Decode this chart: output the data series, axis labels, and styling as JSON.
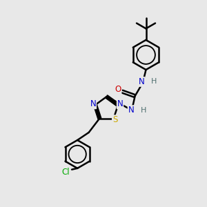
{
  "bg_color": "#e8e8e8",
  "bond_color": "#000000",
  "bond_width": 1.8,
  "atom_colors": {
    "N": "#0000cc",
    "O": "#cc0000",
    "S": "#ccaa00",
    "Cl": "#00aa00",
    "H": "#507070",
    "C": "#000000"
  },
  "figsize": [
    3.0,
    3.0
  ],
  "dpi": 100
}
